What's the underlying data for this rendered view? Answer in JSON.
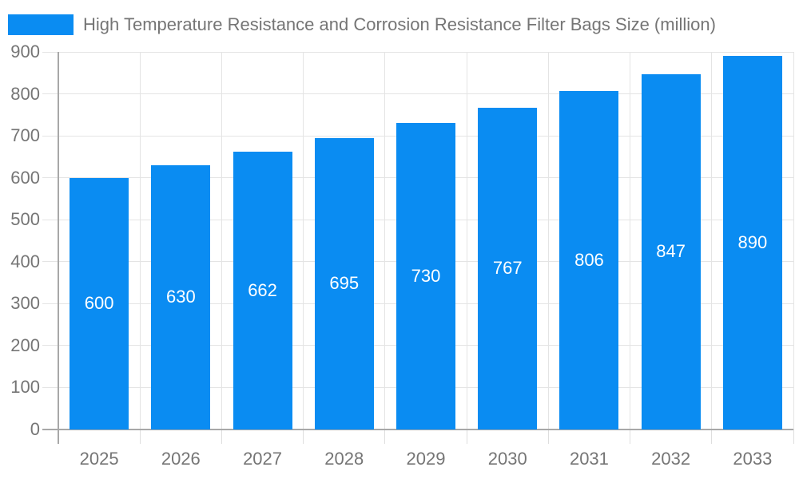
{
  "legend": {
    "label": "High Temperature Resistance and Corrosion Resistance Filter Bags Size (million)"
  },
  "chart_data": {
    "type": "bar",
    "title": "High Temperature Resistance and Corrosion Resistance Filter Bags Size (million)",
    "categories": [
      "2025",
      "2026",
      "2027",
      "2028",
      "2029",
      "2030",
      "2031",
      "2032",
      "2033"
    ],
    "values": [
      600,
      630,
      662,
      695,
      730,
      767,
      806,
      847,
      890
    ],
    "xlabel": "",
    "ylabel": "",
    "ylim": [
      0,
      900
    ],
    "ytick_interval": 100,
    "ytick_labels": [
      "0",
      "100",
      "200",
      "300",
      "400",
      "500",
      "600",
      "700",
      "800",
      "900"
    ],
    "grid": true,
    "legend_position": "top-left",
    "colors": {
      "bar": "#0a8cf2",
      "bar_value_text": "#ffffff",
      "axis_text": "#757575",
      "gridline": "#e4e4e4",
      "tick": "#dedede",
      "axis_line": "#a8a8a8",
      "background": "#ffffff"
    }
  }
}
